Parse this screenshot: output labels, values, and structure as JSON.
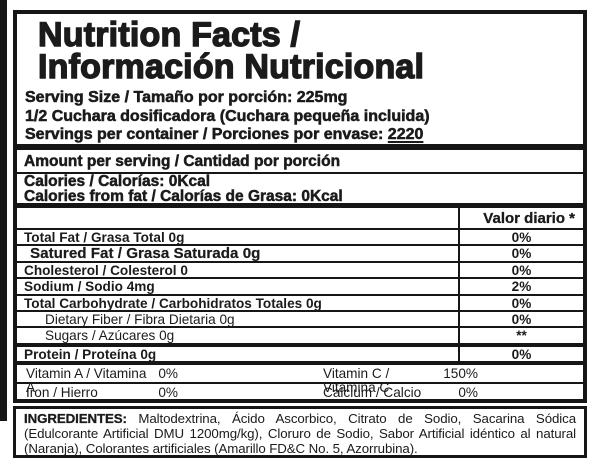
{
  "label": {
    "title_line1": "Nutrition Facts /",
    "title_line2": "Información Nutricional",
    "serving_size_line": "Serving Size / Tamaño por porción: 225mg",
    "scoop_line": "1/2 Cuchara dosificadora (Cuchara pequeña incluida)",
    "servings_line_prefix": "Servings per container / Porciones por envase: ",
    "servings_value": "2220",
    "amount_per_serving": "Amount per serving / Cantidad por porción",
    "calories_line1": "Calories / Calorías: 0Kcal",
    "calories_line2": "Calories from fat / Calorías de Grasa: 0Kcal",
    "daily_value_header": "Valor diario *",
    "nutrient_rows": [
      {
        "name": "Total Fat / Grasa Total  0g",
        "value": "0%"
      },
      {
        "name": "Satured Fat / Grasa Saturada 0g",
        "value": "0%"
      },
      {
        "name": "Cholesterol / Colesterol 0",
        "value": "0%"
      },
      {
        "name": "Sodium / Sodio  4mg",
        "value": "2%"
      },
      {
        "name": "Total Carbohydrate / Carbohidratos Totales  0g",
        "value": "0%"
      },
      {
        "name": "Dietary Fiber / Fibra Dietaria  0g",
        "value": "0%"
      },
      {
        "name": "Sugars / Azúcares  0g",
        "value": "**"
      },
      {
        "name": "Protein / Proteína  0g",
        "value": "0%"
      }
    ],
    "vitamin_rows": [
      {
        "left_name": "Vitamin A / Vitamina A",
        "left_value": "0%",
        "right_name": "Vitamin C / Vitamina C",
        "right_value": "150%"
      },
      {
        "left_name": "Iron / Hierro",
        "left_value": "0%",
        "right_name": "Calcium / Calcio",
        "right_value": "0%"
      }
    ],
    "ingredients_label": "INGREDIENTES:",
    "ingredients_text": " Maltodextrina, Ácido Ascorbico, Citrato de Sodio, Sacarina Sódica (Edulcorante Artificial DMU 1200mg/kg), Cloruro de Sodio, Sabor Artificial idéntico al natural (Naranja), Colorantes artificiales (Amarillo FD&C No. 5, Azorrubina)."
  },
  "colors": {
    "text": "#1b1b1b",
    "border": "#161616",
    "background": "#ffffff"
  }
}
